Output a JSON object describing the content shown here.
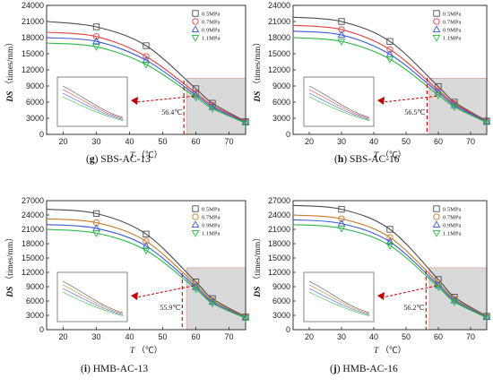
{
  "chart_data": [
    {
      "type": "line",
      "caption_letter": "g",
      "caption_text": " SBS-AC-13",
      "xlabel": "T",
      "xunit": "（℃）",
      "ylabel_italic": "DS",
      "ylabel_unit": "（times/mm）",
      "xlim": [
        15,
        75
      ],
      "ylim": [
        0,
        24000
      ],
      "yticks": [
        0,
        3000,
        6000,
        9000,
        12000,
        15000,
        18000,
        21000,
        24000
      ],
      "ytick_labels": [
        "0",
        "3000",
        "6000",
        "9000",
        "12000",
        "15000",
        "18000",
        "21000",
        "24000"
      ],
      "xticks": [
        20,
        30,
        40,
        50,
        60,
        70
      ],
      "xtick_labels": [
        "20",
        "30",
        "40",
        "50",
        "60",
        "70"
      ],
      "x": [
        15,
        30,
        45,
        60,
        65,
        75
      ],
      "series": [
        {
          "name": "0.5MPa",
          "values": [
            21000,
            20000,
            16500,
            8500,
            5800,
            2400
          ],
          "color": "#4d4d4d",
          "marker": "square"
        },
        {
          "name": "0.7MPa",
          "values": [
            19000,
            18200,
            14500,
            7700,
            5400,
            2300
          ],
          "color": "#e04040",
          "marker": "circle"
        },
        {
          "name": "0.9MPa",
          "values": [
            18000,
            17300,
            13800,
            7300,
            5100,
            2200
          ],
          "color": "#3b5bdb",
          "marker": "triangle-up"
        },
        {
          "name": "1.1MPa",
          "values": [
            17000,
            16300,
            13000,
            6900,
            4800,
            2100
          ],
          "color": "#2fb84a",
          "marker": "triangle-down"
        }
      ],
      "critical_temperature": 56.4,
      "annotation": "56.4℃",
      "legend_position": "top-right"
    },
    {
      "type": "line",
      "caption_letter": "h",
      "caption_text": " SBS-AC-16",
      "xlabel": "T",
      "xunit": "（℃）",
      "ylabel_italic": "DS",
      "ylabel_unit": "（times/mm）",
      "xlim": [
        15,
        75
      ],
      "ylim": [
        0,
        24000
      ],
      "yticks": [
        0,
        3000,
        6000,
        9000,
        12000,
        15000,
        18000,
        21000,
        24000
      ],
      "ytick_labels": [
        "0",
        "3000",
        "6000",
        "9000",
        "12000",
        "15000",
        "18000",
        "21000",
        "24000"
      ],
      "xticks": [
        20,
        30,
        40,
        50,
        60,
        70
      ],
      "xtick_labels": [
        "20",
        "30",
        "40",
        "50",
        "60",
        "70"
      ],
      "x": [
        15,
        30,
        45,
        60,
        65,
        75
      ],
      "series": [
        {
          "name": "0.5MPa",
          "values": [
            21800,
            21000,
            17300,
            8900,
            6000,
            2500
          ],
          "color": "#4d4d4d",
          "marker": "square"
        },
        {
          "name": "0.7MPa",
          "values": [
            20300,
            19500,
            15800,
            8200,
            5700,
            2400
          ],
          "color": "#e04040",
          "marker": "circle"
        },
        {
          "name": "0.9MPa",
          "values": [
            19200,
            18500,
            14900,
            7800,
            5400,
            2300
          ],
          "color": "#3b5bdb",
          "marker": "triangle-up"
        },
        {
          "name": "1.1MPa",
          "values": [
            18000,
            17300,
            14000,
            7300,
            5100,
            2200
          ],
          "color": "#2fb84a",
          "marker": "triangle-down"
        }
      ],
      "critical_temperature": 56.5,
      "annotation": "56.5℃",
      "legend_position": "top-right"
    },
    {
      "type": "line",
      "caption_letter": "i",
      "caption_text": " HMB-AC-13",
      "xlabel": "T",
      "xunit": "（℃）",
      "ylabel_italic": "DS",
      "ylabel_unit": "（times/mm）",
      "xlim": [
        15,
        75
      ],
      "ylim": [
        0,
        27000
      ],
      "yticks": [
        0,
        3000,
        6000,
        9000,
        12000,
        15000,
        18000,
        21000,
        24000,
        27000
      ],
      "ytick_labels": [
        "0",
        "3000",
        "6000",
        "9000",
        "12000",
        "15000",
        "18000",
        "21000",
        "24000",
        "27000"
      ],
      "xticks": [
        20,
        30,
        40,
        50,
        60,
        70
      ],
      "xtick_labels": [
        "20",
        "30",
        "40",
        "50",
        "60",
        "70"
      ],
      "x": [
        15,
        30,
        45,
        60,
        65,
        75
      ],
      "series": [
        {
          "name": "0.5MPa",
          "values": [
            25200,
            24300,
            20000,
            10000,
            6500,
            2700
          ],
          "color": "#4d4d4d",
          "marker": "square"
        },
        {
          "name": "0.7MPa",
          "values": [
            23200,
            22400,
            18500,
            9400,
            6100,
            2600
          ],
          "color": "#c87a2a",
          "marker": "circle"
        },
        {
          "name": "0.9MPa",
          "values": [
            22000,
            21200,
            17500,
            8900,
            5800,
            2500
          ],
          "color": "#3b5bdb",
          "marker": "triangle-up"
        },
        {
          "name": "1.1MPa",
          "values": [
            21000,
            20200,
            16600,
            8500,
            5500,
            2400
          ],
          "color": "#2fb84a",
          "marker": "triangle-down"
        }
      ],
      "critical_temperature": 55.9,
      "annotation": "55.9℃",
      "legend_position": "top-right"
    },
    {
      "type": "line",
      "caption_letter": "j",
      "caption_text": " HMB-AC-16",
      "xlabel": "T",
      "xunit": "（℃）",
      "ylabel_italic": "DS",
      "ylabel_unit": "（times/mm）",
      "xlim": [
        15,
        75
      ],
      "ylim": [
        0,
        27000
      ],
      "yticks": [
        0,
        3000,
        6000,
        9000,
        12000,
        15000,
        18000,
        21000,
        24000,
        27000
      ],
      "ytick_labels": [
        "0",
        "3000",
        "6000",
        "9000",
        "12000",
        "15000",
        "18000",
        "21000",
        "24000",
        "27000"
      ],
      "xticks": [
        20,
        30,
        40,
        50,
        60,
        70
      ],
      "xtick_labels": [
        "20",
        "30",
        "40",
        "50",
        "60",
        "70"
      ],
      "x": [
        15,
        30,
        45,
        60,
        65,
        75
      ],
      "series": [
        {
          "name": "0.5MPa",
          "values": [
            26000,
            25200,
            21000,
            10500,
            6800,
            2800
          ],
          "color": "#4d4d4d",
          "marker": "square"
        },
        {
          "name": "0.7MPa",
          "values": [
            24000,
            23200,
            19300,
            9800,
            6400,
            2700
          ],
          "color": "#c87a2a",
          "marker": "circle"
        },
        {
          "name": "0.9MPa",
          "values": [
            23000,
            22200,
            18400,
            9300,
            6100,
            2600
          ],
          "color": "#3b5bdb",
          "marker": "triangle-up"
        },
        {
          "name": "1.1MPa",
          "values": [
            22000,
            21200,
            17600,
            8900,
            5800,
            2500
          ],
          "color": "#2fb84a",
          "marker": "triangle-down"
        }
      ],
      "critical_temperature": 56.2,
      "annotation": "56.2℃",
      "legend_position": "top-right"
    }
  ]
}
